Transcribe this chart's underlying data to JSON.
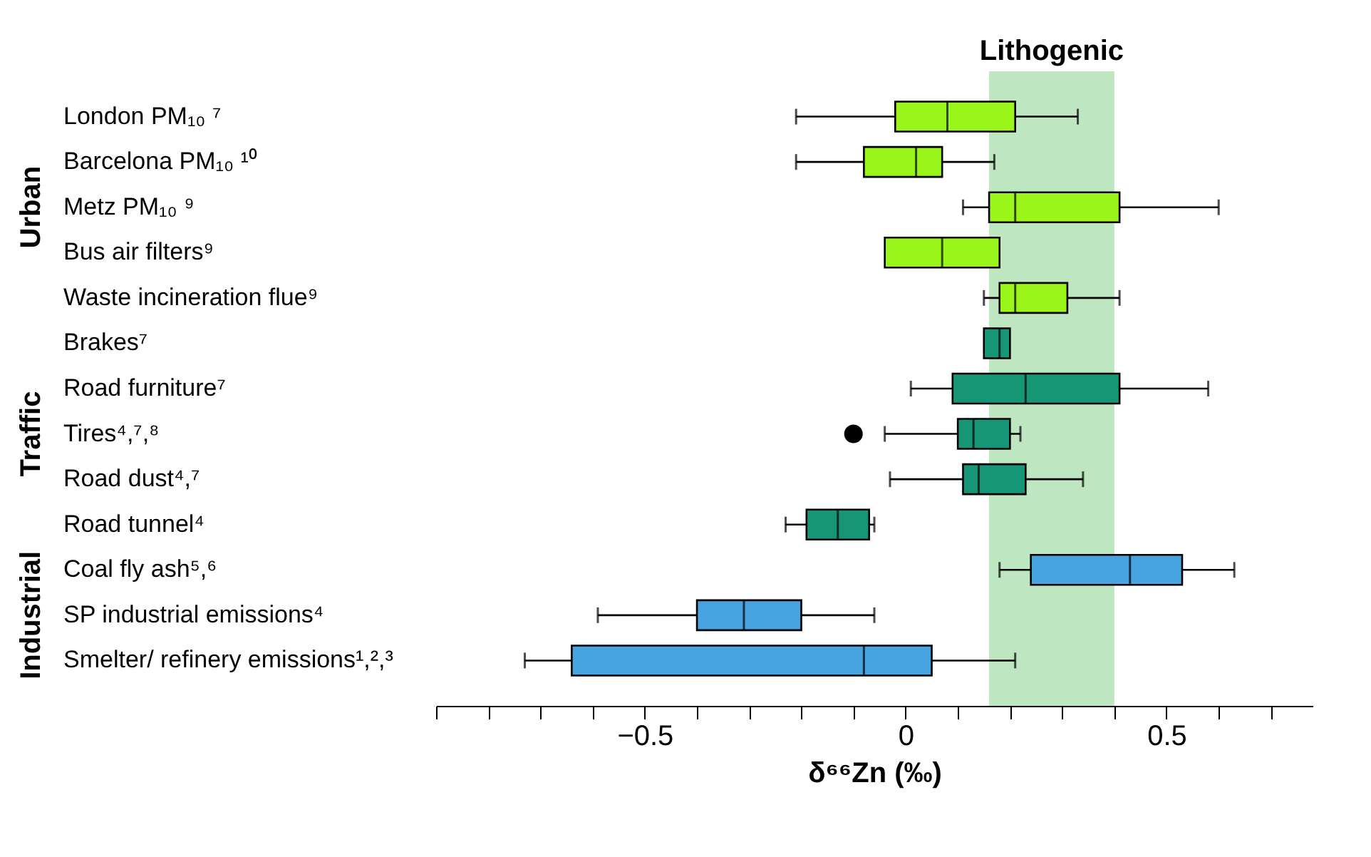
{
  "chart_data": {
    "type": "box",
    "orientation": "horizontal",
    "categories": [
      "London PM₁₀ ⁷",
      "Barcelona PM₁₀ ¹⁰",
      "Metz PM₁₀ ⁹",
      "Bus air filters⁹",
      "Waste incineration flue⁹",
      "Brakes⁷",
      "Road furniture⁷",
      "Tires⁴,⁷,⁸",
      "Road dust⁴,⁷",
      "Road tunnel⁴",
      "Coal fly ash⁵,⁶",
      "SP industrial emissions⁴",
      "Smelter/ refinery emissions¹,²,³"
    ],
    "series": [
      {
        "color": "#9af51b",
        "boxes": [
          {
            "low": -0.21,
            "q1": -0.02,
            "median": 0.08,
            "q3": 0.21,
            "high": 0.33
          },
          {
            "low": -0.21,
            "q1": -0.08,
            "median": 0.02,
            "q3": 0.07,
            "high": 0.17
          },
          {
            "low": 0.11,
            "q1": 0.16,
            "median": 0.21,
            "q3": 0.41,
            "high": 0.6
          },
          {
            "low": -0.04,
            "q1": -0.04,
            "median": 0.07,
            "q3": 0.18,
            "high": 0.18
          },
          {
            "low": 0.15,
            "q1": 0.18,
            "median": 0.21,
            "q3": 0.31,
            "high": 0.41
          },
          null,
          null,
          null,
          null,
          null,
          null,
          null,
          null
        ]
      },
      {
        "color": "#169676",
        "boxes": [
          null,
          null,
          null,
          null,
          null,
          {
            "low": 0.15,
            "q1": 0.15,
            "median": 0.18,
            "q3": 0.2,
            "high": 0.2
          },
          {
            "low": 0.01,
            "q1": 0.09,
            "median": 0.23,
            "q3": 0.41,
            "high": 0.58
          },
          {
            "low": -0.04,
            "q1": 0.1,
            "median": 0.13,
            "q3": 0.2,
            "high": 0.22,
            "outliers": [
              -0.1
            ]
          },
          {
            "low": -0.03,
            "q1": 0.11,
            "median": 0.14,
            "q3": 0.23,
            "high": 0.34
          },
          {
            "low": -0.23,
            "q1": -0.19,
            "median": -0.13,
            "q3": -0.07,
            "high": -0.06
          },
          null,
          null,
          null
        ]
      },
      {
        "color": "#48a4e0",
        "boxes": [
          null,
          null,
          null,
          null,
          null,
          null,
          null,
          null,
          null,
          null,
          {
            "low": 0.18,
            "q1": 0.24,
            "median": 0.43,
            "q3": 0.53,
            "high": 0.63
          },
          {
            "low": -0.59,
            "q1": -0.4,
            "median": -0.31,
            "q3": -0.2,
            "high": -0.06
          },
          {
            "low": -0.73,
            "q1": -0.64,
            "median": -0.08,
            "q3": 0.05,
            "high": 0.21
          }
        ]
      }
    ],
    "xlim": [
      -0.9,
      0.78
    ],
    "xlabel": "δ⁶⁶Zn (‰)",
    "grid": false,
    "xticks": [
      {
        "value": -0.9,
        "label": null
      },
      {
        "value": -0.8,
        "label": null
      },
      {
        "value": -0.7,
        "label": null
      },
      {
        "value": -0.6,
        "label": null
      },
      {
        "value": -0.5,
        "label": "−0.5"
      },
      {
        "value": -0.4,
        "label": null
      },
      {
        "value": -0.3,
        "label": null
      },
      {
        "value": -0.2,
        "label": null
      },
      {
        "value": -0.1,
        "label": null
      },
      0,
      {
        "value": 0.1,
        "label": null
      },
      {
        "value": 0.2,
        "label": null
      },
      {
        "value": 0.3,
        "label": null
      },
      {
        "value": 0.4,
        "label": null
      },
      0.5,
      {
        "value": 0.6,
        "label": null
      },
      {
        "value": 0.7,
        "label": null
      }
    ],
    "bands": [
      {
        "axis": "x",
        "from": 0.16,
        "to": 0.4,
        "label": "Lithogenic",
        "color": "#bde6c1"
      }
    ],
    "annotations": [
      "Urban",
      "Traffic",
      "Industrial"
    ]
  }
}
